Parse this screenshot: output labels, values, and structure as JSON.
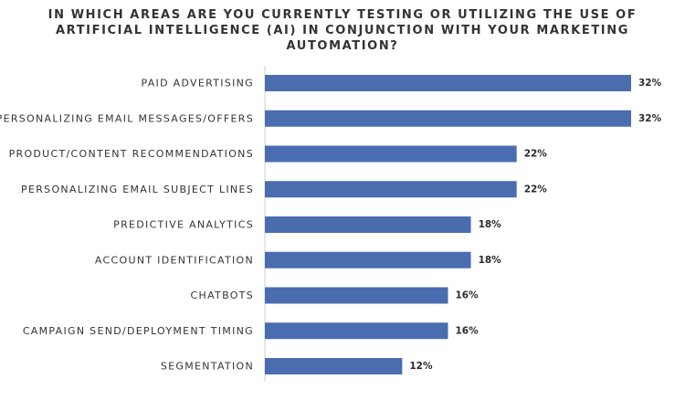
{
  "chart_data": {
    "type": "bar",
    "orientation": "horizontal",
    "title": "IN WHICH AREAS ARE YOU CURRENTLY TESTING OR UTILIZING THE USE OF ARTIFICIAL INTELLIGENCE (AI) IN CONJUNCTION WITH YOUR MARKETING AUTOMATION?",
    "categories": [
      "PAID ADVERTISING",
      "PERSONALIZING EMAIL MESSAGES/OFFERS",
      "PRODUCT/CONTENT RECOMMENDATIONS",
      "PERSONALIZING EMAIL SUBJECT LINES",
      "PREDICTIVE ANALYTICS",
      "ACCOUNT IDENTIFICATION",
      "CHATBOTS",
      "CAMPAIGN SEND/DEPLOYMENT TIMING",
      "SEGMENTATION"
    ],
    "values": [
      32,
      32,
      22,
      22,
      18,
      18,
      16,
      16,
      12
    ],
    "value_labels": [
      "32%",
      "32%",
      "22%",
      "22%",
      "18%",
      "18%",
      "16%",
      "16%",
      "12%"
    ],
    "unit": "%",
    "xlim": [
      0,
      32
    ],
    "bar_color": "#4a6db0",
    "grid": false,
    "legend": "none"
  }
}
